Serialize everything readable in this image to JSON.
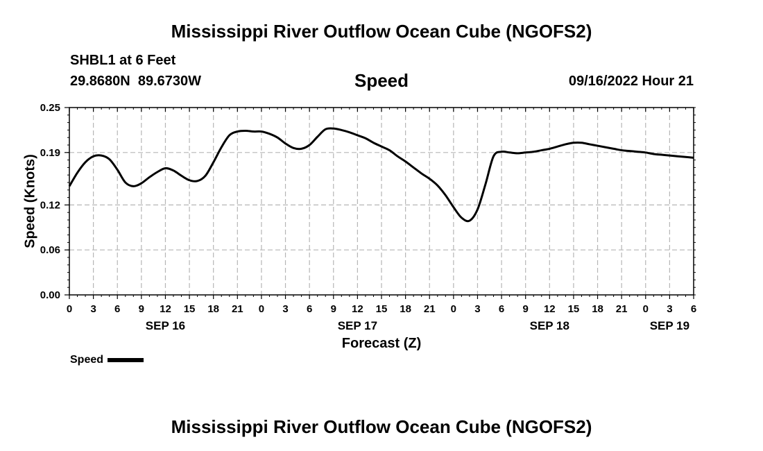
{
  "header": {
    "title": "Mississippi River Outflow Ocean Cube (NGOFS2)",
    "station": "SHBL1 at 6 Feet",
    "coords": "29.8680N  89.6730W",
    "plot_name": "Speed",
    "datetime": "09/16/2022 Hour 21"
  },
  "footer": {
    "title": "Mississippi River Outflow Ocean Cube (NGOFS2)"
  },
  "legend": {
    "label": "Speed"
  },
  "chart_data": {
    "type": "line",
    "title": "Speed",
    "xlabel": "Forecast (Z)",
    "ylabel": "Speed (Knots)",
    "x_unit": "hours from 2022-09-16 00Z",
    "xlim": [
      0,
      78
    ],
    "ylim": [
      0,
      0.25
    ],
    "yticks": [
      0.0,
      0.06,
      0.12,
      0.19,
      0.25
    ],
    "ytick_labels": [
      "0.00",
      "0.06",
      "0.12",
      "0.19",
      "0.25"
    ],
    "xticks": [
      0,
      3,
      6,
      9,
      12,
      15,
      18,
      21,
      24,
      27,
      30,
      33,
      36,
      39,
      42,
      45,
      48,
      51,
      54,
      57,
      60,
      63,
      66,
      69,
      72,
      75,
      78
    ],
    "xtick_labels": [
      "0",
      "3",
      "6",
      "9",
      "12",
      "15",
      "18",
      "21",
      "0",
      "3",
      "6",
      "9",
      "12",
      "15",
      "18",
      "21",
      "0",
      "3",
      "6",
      "9",
      "12",
      "15",
      "18",
      "21",
      "0",
      "3",
      "6"
    ],
    "date_labels": [
      {
        "x": 12,
        "label": "SEP 16"
      },
      {
        "x": 36,
        "label": "SEP 17"
      },
      {
        "x": 60,
        "label": "SEP 18"
      },
      {
        "x": 75,
        "label": "SEP 19"
      }
    ],
    "grid": true,
    "legend_position": "bottom-left",
    "series": [
      {
        "name": "Speed",
        "color": "#000000",
        "x": [
          0,
          1,
          2,
          3,
          4,
          5,
          6,
          7,
          8,
          9,
          10,
          11,
          12,
          13,
          14,
          15,
          16,
          17,
          18,
          19,
          20,
          21,
          22,
          23,
          24,
          25,
          26,
          27,
          28,
          29,
          30,
          31,
          32,
          33,
          34,
          35,
          36,
          37,
          38,
          39,
          40,
          41,
          42,
          43,
          44,
          45,
          46,
          47,
          48,
          49,
          50,
          51,
          52,
          53,
          54,
          55,
          56,
          57,
          58,
          59,
          60,
          61,
          62,
          63,
          64,
          65,
          66,
          67,
          68,
          69,
          70,
          71,
          72,
          73,
          74,
          75,
          76,
          77,
          78
        ],
        "values": [
          0.145,
          0.163,
          0.177,
          0.185,
          0.186,
          0.181,
          0.167,
          0.15,
          0.145,
          0.149,
          0.157,
          0.164,
          0.169,
          0.166,
          0.159,
          0.153,
          0.152,
          0.159,
          0.177,
          0.197,
          0.213,
          0.218,
          0.219,
          0.218,
          0.218,
          0.215,
          0.21,
          0.202,
          0.196,
          0.195,
          0.2,
          0.211,
          0.221,
          0.222,
          0.22,
          0.217,
          0.213,
          0.209,
          0.203,
          0.198,
          0.193,
          0.185,
          0.178,
          0.17,
          0.162,
          0.155,
          0.146,
          0.133,
          0.117,
          0.103,
          0.099,
          0.114,
          0.148,
          0.185,
          0.191,
          0.19,
          0.189,
          0.19,
          0.191,
          0.193,
          0.195,
          0.198,
          0.201,
          0.203,
          0.203,
          0.201,
          0.199,
          0.197,
          0.195,
          0.193,
          0.192,
          0.191,
          0.19,
          0.188,
          0.187,
          0.186,
          0.185,
          0.184,
          0.183
        ]
      }
    ]
  }
}
